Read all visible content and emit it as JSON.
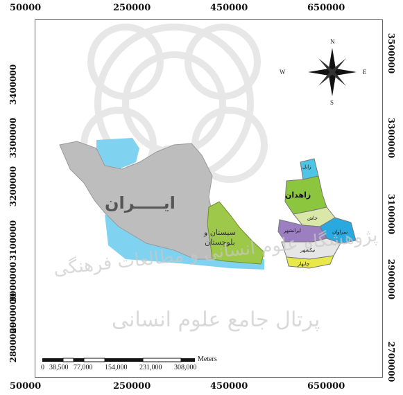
{
  "axis": {
    "top_ticks": [
      "50000",
      "250000",
      "450000",
      "650000"
    ],
    "bottom_ticks": [
      "50000",
      "250000",
      "450000",
      "650000"
    ],
    "left_ticks": [
      "3400000",
      "3300000",
      "3200000",
      "3100000",
      "3000000",
      "2900000",
      "2800000"
    ],
    "right_ticks": [
      "3500000",
      "3300000",
      "3100000",
      "2900000",
      "2700000"
    ]
  },
  "compass": {
    "n": "N",
    "s": "S",
    "e": "E",
    "w": "W"
  },
  "labels": {
    "iran": "ایـــــران",
    "province": "سیستان و بلوچستان"
  },
  "counties": [
    "زابل",
    "زاهدان",
    "خاش",
    "سراوان",
    "ایرانشهر",
    "نیکشهر",
    "چابهار"
  ],
  "scale_bar": {
    "labels": [
      "0",
      "38,500",
      "77,000",
      "154,000",
      "231,000",
      "308,000"
    ],
    "unit": "Meters"
  },
  "watermark": {
    "line1": "پژوهشگاه علوم انسانی و مطالعات فرهنگی",
    "line2": "پرتال جامع علوم انسانی"
  },
  "colors": {
    "iran": "#bdbdbd",
    "sea": "#7fd3f0",
    "province": "#9ec84a",
    "zabol": "#4fc4e4",
    "zahedan": "#8cc63f",
    "khash": "#d9e8a8",
    "saravan": "#29a9e0",
    "iranshahr": "#9b7fc0",
    "nikshahr": "#e6e6e6",
    "chabahar": "#e8e84a"
  }
}
